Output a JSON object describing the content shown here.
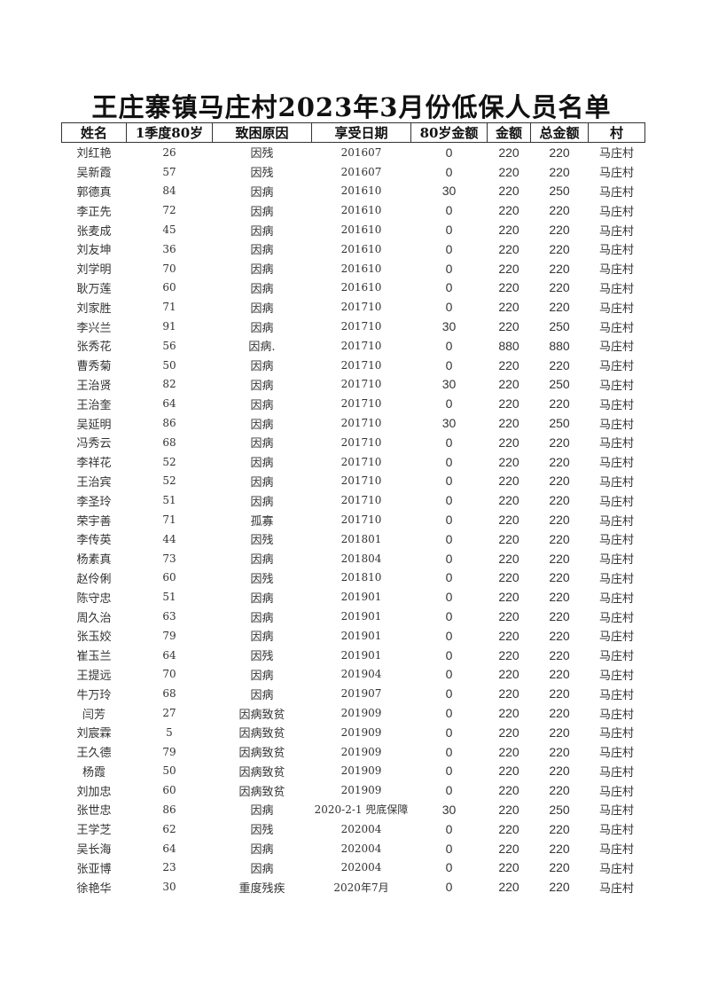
{
  "title": "王庄寨镇马庄村2023年3月份低保人员名单",
  "columns": [
    "姓名",
    "1季度80岁",
    "致困原因",
    "享受日期",
    "80岁金额",
    "金额",
    "总金额",
    "村"
  ],
  "rows": [
    [
      "刘红艳",
      "26",
      "因残",
      "201607",
      "0",
      "220",
      "220",
      "马庄村"
    ],
    [
      "吴新霞",
      "57",
      "因残",
      "201607",
      "0",
      "220",
      "220",
      "马庄村"
    ],
    [
      "郭德真",
      "84",
      "因病",
      "201610",
      "30",
      "220",
      "250",
      "马庄村"
    ],
    [
      "李正先",
      "72",
      "因病",
      "201610",
      "0",
      "220",
      "220",
      "马庄村"
    ],
    [
      "张麦成",
      "45",
      "因病",
      "201610",
      "0",
      "220",
      "220",
      "马庄村"
    ],
    [
      "刘友坤",
      "36",
      "因病",
      "201610",
      "0",
      "220",
      "220",
      "马庄村"
    ],
    [
      "刘学明",
      "70",
      "因病",
      "201610",
      "0",
      "220",
      "220",
      "马庄村"
    ],
    [
      "耿万莲",
      "60",
      "因病",
      "201610",
      "0",
      "220",
      "220",
      "马庄村"
    ],
    [
      "刘家胜",
      "71",
      "因病",
      "201710",
      "0",
      "220",
      "220",
      "马庄村"
    ],
    [
      "李兴兰",
      "91",
      "因病",
      "201710",
      "30",
      "220",
      "250",
      "马庄村"
    ],
    [
      "张秀花",
      "56",
      "因病.",
      "201710",
      "0",
      "880",
      "880",
      "马庄村"
    ],
    [
      "曹秀菊",
      "50",
      "因病",
      "201710",
      "0",
      "220",
      "220",
      "马庄村"
    ],
    [
      "王治贤",
      "82",
      "因病",
      "201710",
      "30",
      "220",
      "250",
      "马庄村"
    ],
    [
      "王治奎",
      "64",
      "因病",
      "201710",
      "0",
      "220",
      "220",
      "马庄村"
    ],
    [
      "吴延明",
      "86",
      "因病",
      "201710",
      "30",
      "220",
      "250",
      "马庄村"
    ],
    [
      "冯秀云",
      "68",
      "因病",
      "201710",
      "0",
      "220",
      "220",
      "马庄村"
    ],
    [
      "李祥花",
      "52",
      "因病",
      "201710",
      "0",
      "220",
      "220",
      "马庄村"
    ],
    [
      "王治宾",
      "52",
      "因病",
      "201710",
      "0",
      "220",
      "220",
      "马庄村"
    ],
    [
      "李圣玲",
      "51",
      "因病",
      "201710",
      "0",
      "220",
      "220",
      "马庄村"
    ],
    [
      "荣宇善",
      "71",
      "孤寡",
      "201710",
      "0",
      "220",
      "220",
      "马庄村"
    ],
    [
      "李传英",
      "44",
      "因残",
      "201801",
      "0",
      "220",
      "220",
      "马庄村"
    ],
    [
      "杨素真",
      "73",
      "因病",
      "201804",
      "0",
      "220",
      "220",
      "马庄村"
    ],
    [
      "赵伶俐",
      "60",
      "因残",
      "201810",
      "0",
      "220",
      "220",
      "马庄村"
    ],
    [
      "陈守忠",
      "51",
      "因病",
      "201901",
      "0",
      "220",
      "220",
      "马庄村"
    ],
    [
      "周久治",
      "63",
      "因病",
      "201901",
      "0",
      "220",
      "220",
      "马庄村"
    ],
    [
      "张玉姣",
      "79",
      "因病",
      "201901",
      "0",
      "220",
      "220",
      "马庄村"
    ],
    [
      "崔玉兰",
      "64",
      "因残",
      "201901",
      "0",
      "220",
      "220",
      "马庄村"
    ],
    [
      "王提远",
      "70",
      "因病",
      "201904",
      "0",
      "220",
      "220",
      "马庄村"
    ],
    [
      "牛万玲",
      "68",
      "因病",
      "201907",
      "0",
      "220",
      "220",
      "马庄村"
    ],
    [
      "闫芳",
      "27",
      "因病致贫",
      "201909",
      "0",
      "220",
      "220",
      "马庄村"
    ],
    [
      "刘宸霖",
      "5",
      "因病致贫",
      "201909",
      "0",
      "220",
      "220",
      "马庄村"
    ],
    [
      "王久德",
      "79",
      "因病致贫",
      "201909",
      "0",
      "220",
      "220",
      "马庄村"
    ],
    [
      "杨霞",
      "50",
      "因病致贫",
      "201909",
      "0",
      "220",
      "220",
      "马庄村"
    ],
    [
      "刘加忠",
      "60",
      "因病致贫",
      "201909",
      "0",
      "220",
      "220",
      "马庄村"
    ],
    [
      "张世忠",
      "86",
      "因病",
      "2020-2-1 兜底保障",
      "30",
      "220",
      "250",
      "马庄村"
    ],
    [
      "王学芝",
      "62",
      "因残",
      "202004",
      "0",
      "220",
      "220",
      "马庄村"
    ],
    [
      "吴长海",
      "64",
      "因病",
      "202004",
      "0",
      "220",
      "220",
      "马庄村"
    ],
    [
      "张亚博",
      "23",
      "因病",
      "202004",
      "0",
      "220",
      "220",
      "马庄村"
    ],
    [
      "徐艳华",
      "30",
      "重度残疾",
      "2020年7月",
      "0",
      "220",
      "220",
      "马庄村"
    ]
  ]
}
